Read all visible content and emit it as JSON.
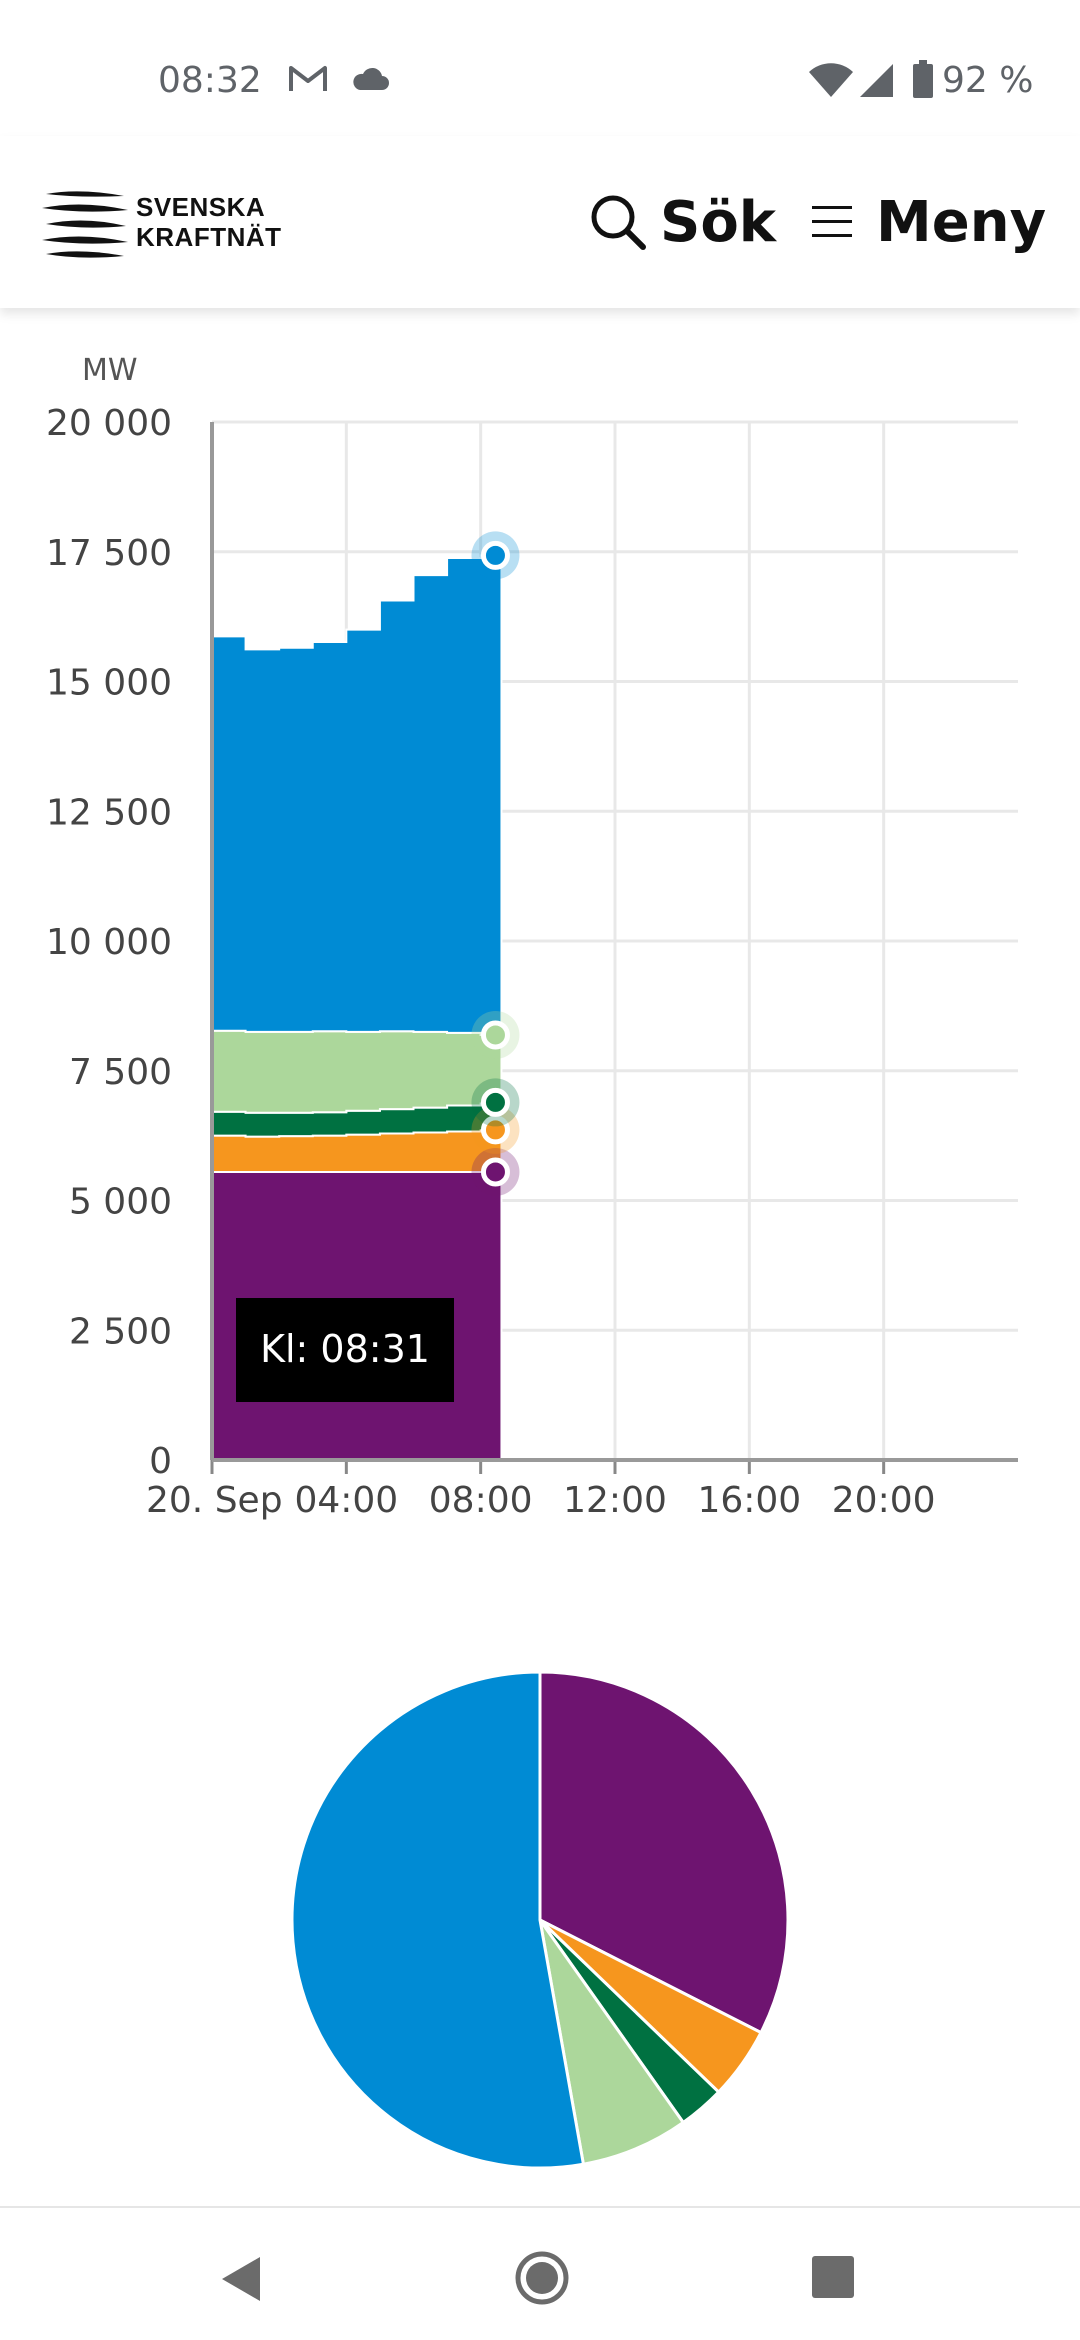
{
  "status_bar": {
    "time": "08:32",
    "battery": "92 %",
    "icons": [
      "gmail-icon",
      "cloud-icon",
      "wifi-icon",
      "signal-icon",
      "battery-icon"
    ]
  },
  "header": {
    "logo_line1": "SVENSKA",
    "logo_line2": "KRAFTNÄT",
    "search_label": "Sök",
    "menu_label": "Meny"
  },
  "colors": {
    "nuclear_blue": "#008bd4",
    "light_green": "#acd79b",
    "dark_green": "#007141",
    "orange": "#f6961e",
    "purple": "#6e1470",
    "tooltip_bg": "#000000"
  },
  "chart_data": [
    {
      "type": "area",
      "stacked": true,
      "unit_label": "MW",
      "ylim": [
        0,
        20000
      ],
      "yticks": [
        0,
        2500,
        5000,
        7500,
        10000,
        12500,
        15000,
        17500,
        20000
      ],
      "ytick_labels": [
        "0",
        "2 500",
        "5 000",
        "7 500",
        "10 000",
        "12 500",
        "15 000",
        "17 500",
        "20 000"
      ],
      "xlim": [
        0,
        24
      ],
      "xticks": [
        0,
        4,
        8,
        12,
        16,
        20
      ],
      "xtick_labels": [
        "20. Sep",
        "04:00",
        "08:00",
        "12:00",
        "16:00",
        "20:00"
      ],
      "grid": true,
      "tooltip": "Kl: 08:31",
      "x": [
        0,
        1,
        2,
        3,
        4,
        5,
        6,
        7,
        8,
        8.5
      ],
      "series": [
        {
          "color": "#6e1470",
          "values": [
            5550,
            5550,
            5550,
            5550,
            5550,
            5550,
            5550,
            5550,
            5550,
            5550
          ]
        },
        {
          "color": "#f6961e",
          "values": [
            700,
            680,
            690,
            700,
            720,
            740,
            760,
            780,
            800,
            810
          ]
        },
        {
          "color": "#007141",
          "values": [
            460,
            460,
            450,
            450,
            460,
            470,
            480,
            500,
            520,
            530
          ]
        },
        {
          "color": "#acd79b",
          "values": [
            1560,
            1560,
            1560,
            1560,
            1520,
            1500,
            1460,
            1400,
            1320,
            1300
          ]
        },
        {
          "color": "#008bd4",
          "values": [
            7600,
            7370,
            7400,
            7500,
            7750,
            8300,
            8800,
            9150,
            9240,
            9240
          ]
        }
      ]
    },
    {
      "type": "pie",
      "slices": [
        {
          "color": "#6e1470",
          "value": 32.5
        },
        {
          "color": "#f6961e",
          "value": 4.7
        },
        {
          "color": "#007141",
          "value": 3.0
        },
        {
          "color": "#acd79b",
          "value": 7.0
        },
        {
          "color": "#008bd4",
          "value": 52.8
        }
      ]
    }
  ]
}
